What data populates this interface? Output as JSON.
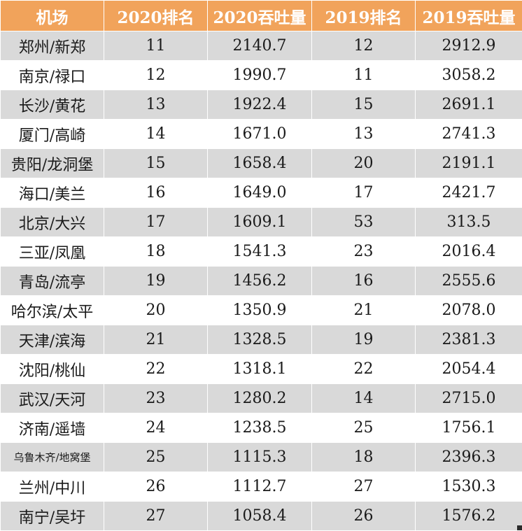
{
  "table": {
    "headers": [
      "机场",
      "2020排名",
      "2020吞吐量",
      "2019排名",
      "2019吞吐量"
    ],
    "rows": [
      [
        "郑州/新郑",
        "11",
        "2140.7",
        "12",
        "2912.9"
      ],
      [
        "南京/禄口",
        "12",
        "1990.7",
        "11",
        "3058.2"
      ],
      [
        "长沙/黄花",
        "13",
        "1922.4",
        "15",
        "2691.1"
      ],
      [
        "厦门/高崎",
        "14",
        "1671.0",
        "13",
        "2741.3"
      ],
      [
        "贵阳/龙洞堡",
        "15",
        "1658.4",
        "20",
        "2191.1"
      ],
      [
        "海口/美兰",
        "16",
        "1649.0",
        "17",
        "2421.7"
      ],
      [
        "北京/大兴",
        "17",
        "1609.1",
        "53",
        "313.5"
      ],
      [
        "三亚/凤凰",
        "18",
        "1541.3",
        "23",
        "2016.4"
      ],
      [
        "青岛/流亭",
        "19",
        "1456.2",
        "16",
        "2555.6"
      ],
      [
        "哈尔滨/太平",
        "20",
        "1350.9",
        "21",
        "2078.0"
      ],
      [
        "天津/滨海",
        "21",
        "1328.5",
        "19",
        "2381.3"
      ],
      [
        "沈阳/桃仙",
        "22",
        "1318.1",
        "22",
        "2054.4"
      ],
      [
        "武汉/天河",
        "23",
        "1280.2",
        "14",
        "2715.0"
      ],
      [
        "济南/遥墙",
        "24",
        "1238.5",
        "25",
        "1756.1"
      ],
      [
        "乌鲁木齐/地窝堡",
        "25",
        "1115.3",
        "18",
        "2396.3"
      ],
      [
        "兰州/中川",
        "26",
        "1112.7",
        "27",
        "1530.3"
      ],
      [
        "南宁/吴圩",
        "27",
        "1058.4",
        "26",
        "1576.2"
      ]
    ]
  },
  "colors": {
    "header_bg": "#f1a35b",
    "header_text": "#ffffff",
    "stripe_bg": "#d9d9d9",
    "plain_bg": "#ffffff"
  }
}
